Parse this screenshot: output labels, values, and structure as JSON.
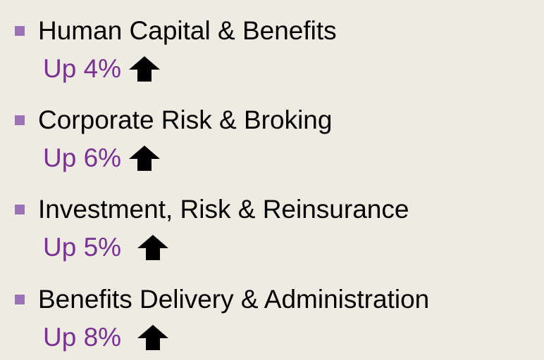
{
  "items": [
    {
      "title": "Human Capital & Benefits",
      "change": "Up 4%"
    },
    {
      "title": "Corporate Risk & Broking",
      "change": "Up 6%"
    },
    {
      "title": "Investment, Risk & Reinsurance",
      "change": "Up 5%"
    },
    {
      "title": "Benefits Delivery & Administration",
      "change": "Up 8%"
    }
  ]
}
